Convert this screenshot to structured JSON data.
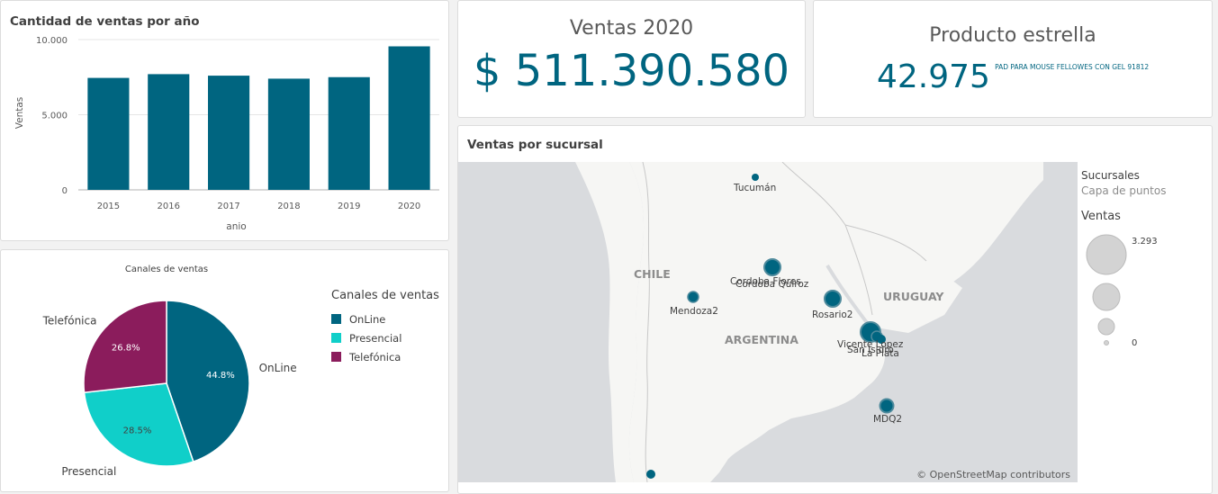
{
  "colors": {
    "primary": "#006580",
    "cyan": "#10cfc9",
    "purple": "#8b1c5c",
    "land": "#f6f6f4",
    "water": "#d9dbde"
  },
  "bar_panel": {
    "title": "Cantidad de ventas por año"
  },
  "pie_panel": {
    "title": "Canales de ventas"
  },
  "kpi_ventas": {
    "title": "Ventas 2020",
    "value": "$ 511.390.580"
  },
  "kpi_producto": {
    "title": "Producto estrella",
    "value": "42.975",
    "product": "PAD PARA MOUSE FELLOWES CON GEL 91812"
  },
  "map_panel": {
    "title": "Ventas por sucursal",
    "legend_title": "Sucursales",
    "legend_subtitle": "Capa de puntos",
    "legend_size_title": "Ventas",
    "legend_max": "3.293",
    "legend_min": "0",
    "attribution": "© OpenStreetMap contributors",
    "countries": [
      "CHILE",
      "ARGENTINA",
      "URUGUAY"
    ],
    "cities": [
      "Tucumán",
      "Cordoba Flores",
      "Cordoba Quiroz",
      "Mendoza2",
      "Rosario2",
      "Vicente Lopez",
      "San Isidro",
      "La Plata",
      "MDQ2"
    ]
  },
  "chart_data": [
    {
      "type": "bar",
      "title": "Cantidad de ventas por año",
      "xlabel": "anio",
      "ylabel": "Ventas",
      "categories": [
        "2015",
        "2016",
        "2017",
        "2018",
        "2019",
        "2020"
      ],
      "values": [
        7450,
        7700,
        7600,
        7400,
        7500,
        9550
      ],
      "ylim": [
        0,
        10000
      ],
      "yticks": [
        "0",
        "5.000",
        "10.000"
      ],
      "grid": true
    },
    {
      "type": "pie",
      "title": "Canales de ventas",
      "legend_title": "Canales de ventas",
      "legend_position": "right",
      "labels": [
        "OnLine",
        "Presencial",
        "Telefónica"
      ],
      "values": [
        44.8,
        28.5,
        26.8
      ],
      "value_labels": [
        "44.8%",
        "28.5%",
        "26.8%"
      ]
    }
  ]
}
